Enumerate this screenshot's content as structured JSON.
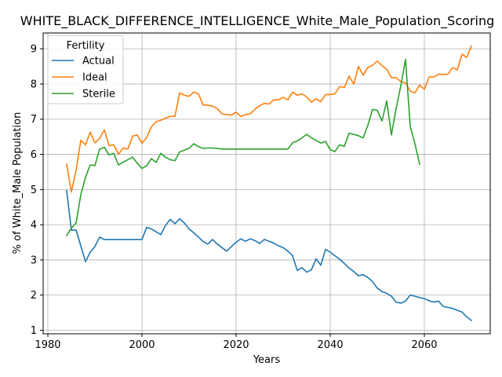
{
  "chart_data": {
    "type": "line",
    "title": "WHITE_BLACK_DIFFERENCE_INTELLIGENCE_White_Male_Population_Scoring",
    "xlabel": "Years",
    "ylabel": "% of White_Male Population",
    "xlim": [
      1979,
      2074
    ],
    "ylim": [
      0.9,
      9.45
    ],
    "xticks": [
      1980,
      2000,
      2020,
      2040,
      2060
    ],
    "yticks": [
      1,
      2,
      3,
      4,
      5,
      6,
      7,
      8,
      9
    ],
    "grid": true,
    "legend": {
      "title": "Fertility",
      "placement": "top-left"
    },
    "series": [
      {
        "name": "Actual",
        "color": "#1f77b4",
        "x": [
          1984,
          1985,
          1986,
          1987,
          1988,
          1989,
          1990,
          1991,
          1992,
          1993,
          1994,
          1995,
          1996,
          1997,
          1998,
          1999,
          2000,
          2001,
          2002,
          2003,
          2004,
          2005,
          2006,
          2007,
          2008,
          2009,
          2010,
          2011,
          2012,
          2013,
          2014,
          2015,
          2016,
          2017,
          2018,
          2019,
          2020,
          2021,
          2022,
          2023,
          2024,
          2025,
          2026,
          2027,
          2028,
          2029,
          2030,
          2031,
          2032,
          2033,
          2034,
          2035,
          2036,
          2037,
          2038,
          2039,
          2040,
          2041,
          2042,
          2043,
          2044,
          2045,
          2046,
          2047,
          2048,
          2049,
          2050,
          2051,
          2052,
          2053,
          2054,
          2055,
          2056,
          2057,
          2058,
          2059,
          2060,
          2061,
          2062,
          2063,
          2064,
          2065,
          2066,
          2067,
          2068,
          2069,
          2070
        ],
        "values": [
          4.97,
          3.85,
          3.85,
          3.4,
          2.95,
          3.22,
          3.38,
          3.65,
          3.58,
          3.58,
          3.58,
          3.58,
          3.58,
          3.58,
          3.58,
          3.58,
          3.58,
          3.93,
          3.88,
          3.8,
          3.72,
          3.98,
          4.15,
          4.03,
          4.17,
          4.05,
          3.88,
          3.77,
          3.65,
          3.52,
          3.45,
          3.58,
          3.45,
          3.35,
          3.25,
          3.38,
          3.5,
          3.6,
          3.53,
          3.6,
          3.55,
          3.47,
          3.58,
          3.53,
          3.48,
          3.4,
          3.35,
          3.25,
          3.12,
          2.7,
          2.78,
          2.65,
          2.72,
          3.03,
          2.85,
          3.3,
          3.22,
          3.12,
          3.02,
          2.9,
          2.77,
          2.67,
          2.55,
          2.58,
          2.5,
          2.38,
          2.2,
          2.1,
          2.05,
          1.97,
          1.8,
          1.77,
          1.83,
          2.0,
          1.97,
          1.93,
          1.9,
          1.84,
          1.8,
          1.83,
          1.68,
          1.65,
          1.62,
          1.57,
          1.52,
          1.38,
          1.28
        ]
      },
      {
        "name": "Ideal",
        "color": "#ff7f0e",
        "x": [
          1984,
          1985,
          1986,
          1987,
          1988,
          1989,
          1990,
          1991,
          1992,
          1993,
          1994,
          1995,
          1996,
          1997,
          1998,
          1999,
          2000,
          2001,
          2002,
          2003,
          2004,
          2005,
          2006,
          2007,
          2008,
          2009,
          2010,
          2011,
          2012,
          2013,
          2014,
          2015,
          2016,
          2017,
          2018,
          2019,
          2020,
          2021,
          2022,
          2023,
          2024,
          2025,
          2026,
          2027,
          2028,
          2029,
          2030,
          2031,
          2032,
          2033,
          2034,
          2035,
          2036,
          2037,
          2038,
          2039,
          2040,
          2041,
          2042,
          2043,
          2044,
          2045,
          2046,
          2047,
          2048,
          2049,
          2050,
          2051,
          2052,
          2053,
          2054,
          2055,
          2056,
          2057,
          2058,
          2059,
          2060,
          2061,
          2062,
          2063,
          2064,
          2065,
          2066,
          2067,
          2068,
          2069,
          2070
        ],
        "values": [
          5.72,
          4.93,
          5.55,
          6.4,
          6.27,
          6.63,
          6.33,
          6.45,
          6.7,
          6.25,
          6.27,
          6.0,
          6.18,
          6.15,
          6.52,
          6.55,
          6.32,
          6.48,
          6.78,
          6.93,
          6.97,
          7.03,
          7.08,
          7.08,
          7.75,
          7.68,
          7.65,
          7.77,
          7.72,
          7.4,
          7.4,
          7.37,
          7.3,
          7.15,
          7.13,
          7.12,
          7.2,
          7.08,
          7.13,
          7.15,
          7.28,
          7.38,
          7.45,
          7.43,
          7.55,
          7.55,
          7.62,
          7.55,
          7.77,
          7.68,
          7.72,
          7.63,
          7.48,
          7.58,
          7.5,
          7.7,
          7.7,
          7.72,
          7.93,
          7.9,
          8.22,
          8.0,
          8.5,
          8.25,
          8.47,
          8.53,
          8.65,
          8.52,
          8.42,
          8.18,
          8.18,
          8.07,
          8.03,
          7.8,
          7.75,
          7.97,
          7.85,
          8.2,
          8.2,
          8.28,
          8.27,
          8.28,
          8.47,
          8.4,
          8.85,
          8.75,
          9.08
        ]
      },
      {
        "name": "Sterile",
        "color": "#2ca02c",
        "x": [
          1984,
          1985,
          1986,
          1987,
          1988,
          1989,
          1990,
          1991,
          1992,
          1993,
          1994,
          1995,
          1996,
          1997,
          1998,
          1999,
          2000,
          2001,
          2002,
          2003,
          2004,
          2005,
          2006,
          2007,
          2008,
          2009,
          2010,
          2011,
          2012,
          2013,
          2014,
          2015,
          2016,
          2017,
          2018,
          2019,
          2020,
          2021,
          2022,
          2023,
          2024,
          2025,
          2026,
          2027,
          2028,
          2029,
          2030,
          2031,
          2032,
          2033,
          2034,
          2035,
          2036,
          2037,
          2038,
          2039,
          2040,
          2041,
          2042,
          2043,
          2044,
          2045,
          2046,
          2047,
          2048,
          2049,
          2050,
          2051,
          2052,
          2053,
          2054,
          2055,
          2056,
          2057,
          2058,
          2059
        ],
        "values": [
          3.7,
          3.9,
          4.05,
          4.85,
          5.35,
          5.7,
          5.68,
          6.15,
          6.2,
          5.98,
          6.03,
          5.7,
          5.78,
          5.85,
          5.92,
          5.75,
          5.6,
          5.68,
          5.88,
          5.77,
          6.03,
          5.92,
          5.85,
          5.82,
          6.07,
          6.12,
          6.17,
          6.3,
          6.22,
          6.17,
          6.18,
          6.18,
          6.17,
          6.15,
          6.15,
          6.15,
          6.15,
          6.15,
          6.15,
          6.15,
          6.15,
          6.15,
          6.15,
          6.15,
          6.15,
          6.15,
          6.15,
          6.15,
          6.33,
          6.38,
          6.47,
          6.57,
          6.47,
          6.4,
          6.32,
          6.37,
          6.13,
          6.08,
          6.27,
          6.23,
          6.6,
          6.57,
          6.53,
          6.47,
          6.83,
          7.28,
          7.25,
          6.95,
          7.52,
          6.55,
          7.3,
          7.95,
          8.7,
          6.8,
          6.3,
          5.72
        ]
      }
    ]
  }
}
